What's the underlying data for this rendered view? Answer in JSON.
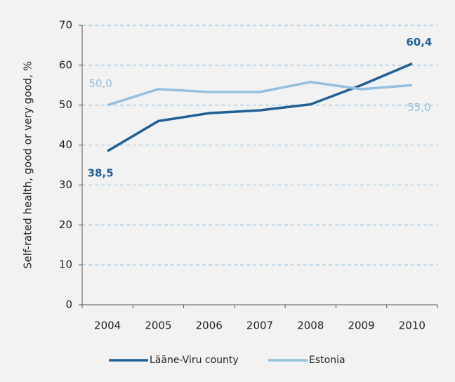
{
  "chart_data": {
    "type": "line",
    "y_label": "Self-rated health, good or very good, %",
    "categories": [
      "2004",
      "2005",
      "2006",
      "2007",
      "2008",
      "2009",
      "2010"
    ],
    "series": [
      {
        "name": "Lääne-Viru county",
        "color": "#1f5f96",
        "values": [
          38.5,
          46.0,
          48.0,
          48.7,
          50.2,
          55.0,
          60.4
        ],
        "value_labels": [
          "38,5",
          null,
          null,
          null,
          null,
          null,
          "60,4"
        ]
      },
      {
        "name": "Estonia",
        "color": "#93bfe0",
        "values": [
          50.0,
          54.0,
          53.3,
          53.3,
          55.8,
          54.0,
          55.0
        ],
        "value_labels": [
          "50,0",
          null,
          null,
          null,
          null,
          null,
          "55,0"
        ]
      }
    ],
    "ylim": [
      0,
      70
    ],
    "yticks": [
      0,
      10,
      20,
      30,
      40,
      50,
      60,
      70
    ],
    "grid": true,
    "legend": "bottom"
  }
}
